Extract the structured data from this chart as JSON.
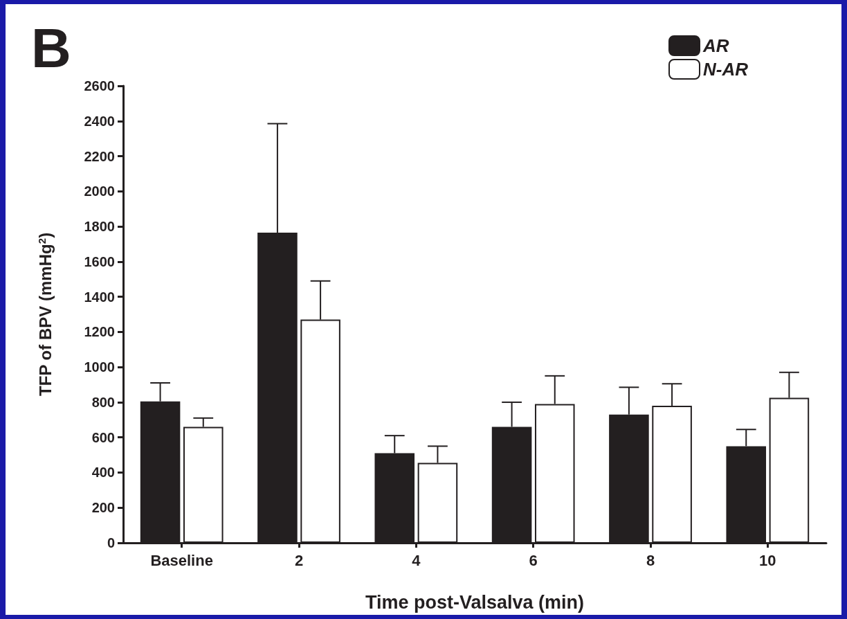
{
  "chart_data": {
    "type": "bar",
    "title": "B",
    "xlabel": "Time post-Valsalva (min)",
    "ylabel": "TFP of BPV (mmHg$^{2}$)",
    "categories": [
      "Baseline",
      "2",
      "4",
      "6",
      "8",
      "10"
    ],
    "series": [
      {
        "name": "AR",
        "color": "#231f20",
        "values": [
          805,
          1765,
          510,
          660,
          730,
          550
        ],
        "errors": [
          [
            805,
            910
          ],
          [
            1765,
            2385
          ],
          [
            510,
            610
          ],
          [
            660,
            800
          ],
          [
            730,
            885
          ],
          [
            550,
            645
          ]
        ]
      },
      {
        "name": "N-AR",
        "color": "#ffffff",
        "values": [
          660,
          1270,
          455,
          790,
          780,
          825
        ],
        "errors": [
          [
            660,
            710
          ],
          [
            1270,
            1490
          ],
          [
            455,
            550
          ],
          [
            790,
            950
          ],
          [
            780,
            905
          ],
          [
            825,
            970
          ]
        ]
      }
    ],
    "ylim": [
      0,
      2600
    ],
    "yticks": [
      0,
      200,
      400,
      600,
      800,
      1000,
      1200,
      1400,
      1600,
      1800,
      2000,
      2200,
      2400,
      2600
    ],
    "grid": false,
    "legend": "top right"
  }
}
